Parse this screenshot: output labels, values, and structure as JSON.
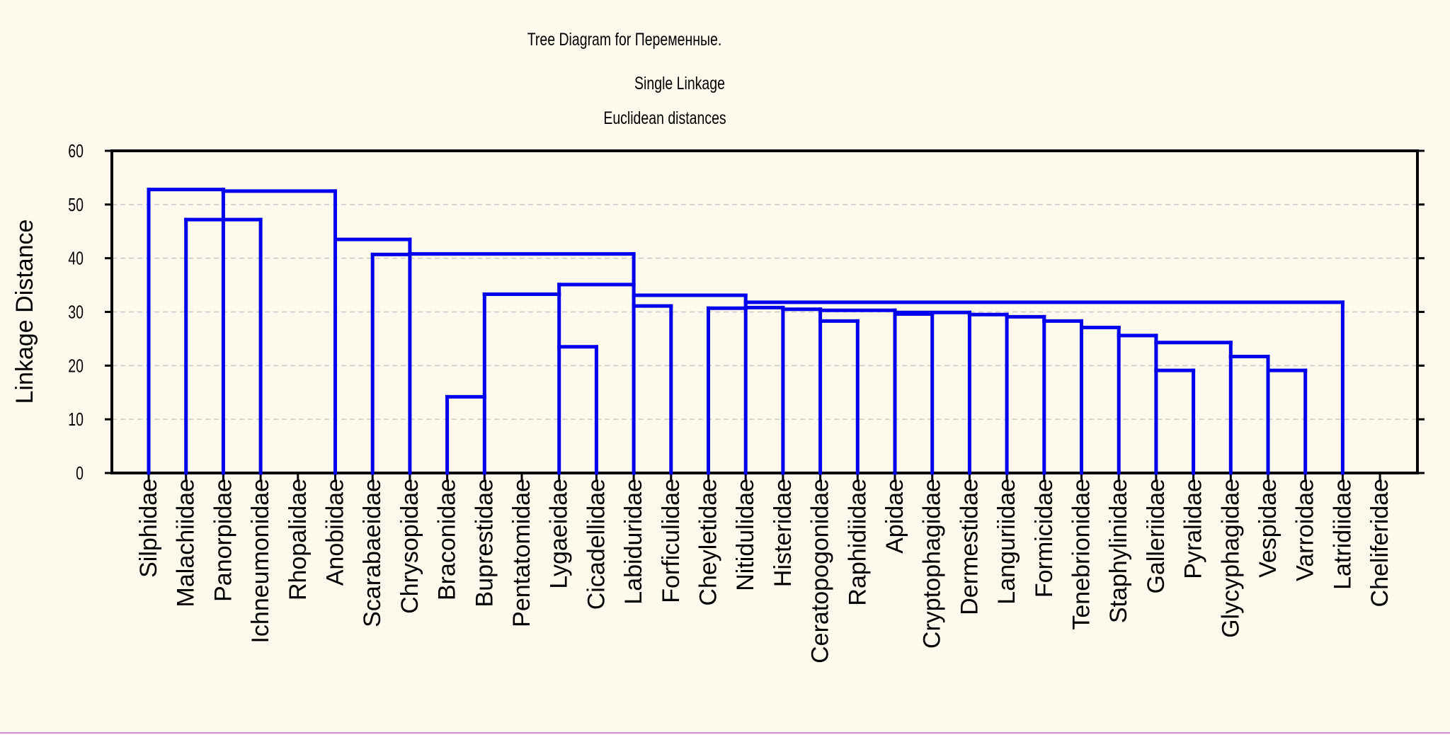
{
  "chart_data": {
    "type": "dendrogram",
    "title": "Tree Diagram for  Переменные.",
    "subtitle_lines": [
      "Single Linkage",
      "Euclidean distances"
    ],
    "ylabel": "Linkage Distance",
    "xlabel": "",
    "ylim": [
      0,
      60
    ],
    "y_ticks": [
      0,
      10,
      20,
      30,
      40,
      50,
      60
    ],
    "grid": true,
    "line_color": "#0000ee",
    "leaves": [
      "Silphidae",
      "Malachiidae",
      "Panorpidae",
      "Ichneumonidae",
      "Rhopalidae",
      "Anobiidae",
      "Scarabaeidae",
      "Chrysopidae",
      "Braconidae",
      "Buprestidae",
      "Pentatomidae",
      "Lygaeidae",
      "Cicadellidae",
      "Labiduridae",
      "Forficulidae",
      "Cheyletidae",
      "Nitidulidae",
      "Histeridae",
      "Ceratopogonidae",
      "Raphidiidae",
      "Apidae",
      "Cryptophagidae",
      "Dermestidae",
      "Languriidae",
      "Formicidae",
      "Tenebrionidae",
      "Staphylinidae",
      "Galleriidae",
      "Pyralidae",
      "Glycyphagidae",
      "Vespidae",
      "Varroidae",
      "Latridiidae",
      "Cheliferidae"
    ],
    "links": [
      {
        "left": "Braconidae",
        "right": "Buprestidae",
        "height": 14.2
      },
      {
        "left": "Galleriidae",
        "right": "Pyralidae",
        "height": 19.1
      },
      {
        "left": "Vespidae",
        "right": "Varroidae",
        "height": 19.1
      },
      {
        "left": "Glycyphagidae",
        "right": "Vespidae",
        "height": 21.7
      },
      {
        "left": "Lygaeidae",
        "right": "Cicadellidae",
        "height": 23.5
      },
      {
        "left": "Galleriidae",
        "right": "Glycyphagidae",
        "height": 24.3
      },
      {
        "left": "Staphylinidae",
        "right": "Galleriidae",
        "height": 25.6
      },
      {
        "left": "Tenebrionidae",
        "right": "Staphylinidae",
        "height": 27.1
      },
      {
        "left": "Ceratopogonidae",
        "right": "Raphidiidae",
        "height": 28.3
      },
      {
        "left": "Formicidae",
        "right": "Tenebrionidae",
        "height": 28.3
      },
      {
        "left": "Languriidae",
        "right": "Formicidae",
        "height": 29.1
      },
      {
        "left": "Dermestidae",
        "right": "Languriidae",
        "height": 29.5
      },
      {
        "left": "Apidae",
        "right": "Cryptophagidae",
        "height": 29.6
      },
      {
        "left": "Apidae",
        "right": "Dermestidae",
        "height": 29.9
      },
      {
        "left": "Ceratopogonidae",
        "right": "Apidae",
        "height": 30.3
      },
      {
        "left": "Histeridae",
        "right": "Ceratopogonidae",
        "height": 30.5
      },
      {
        "left": "Cheyletidae",
        "right": "Nitidulidae",
        "height": 30.7
      },
      {
        "left": "Nitidulidae",
        "right": "Histeridae",
        "height": 30.8
      },
      {
        "left": "Labiduridae",
        "right": "Forficulidae",
        "height": 31.1
      },
      {
        "left": "Nitidulidae",
        "right": "Latridiidae",
        "height": 31.8
      },
      {
        "left": "Labiduridae",
        "right": "Nitidulidae",
        "height": 33.1
      },
      {
        "left": "Buprestidae",
        "right": "Lygaeidae",
        "height": 33.3
      },
      {
        "left": "Lygaeidae",
        "right": "Labiduridae",
        "height": 35.1
      },
      {
        "left": "Scarabaeidae",
        "right": "Chrysopidae",
        "height": 40.7
      },
      {
        "left": "Chrysopidae",
        "right": "Labiduridae",
        "height": 40.8
      },
      {
        "left": "Anobiidae",
        "right": "Chrysopidae",
        "height": 43.5
      },
      {
        "left": "Malachiidae",
        "right": "Panorpidae",
        "height": 47.2
      },
      {
        "left": "Panorpidae",
        "right": "Ichneumonidae",
        "height": 47.2
      },
      {
        "left": "Panorpidae",
        "right": "Anobiidae",
        "height": 52.5
      },
      {
        "left": "Silphidae",
        "right": "Panorpidae",
        "height": 52.8
      }
    ]
  }
}
